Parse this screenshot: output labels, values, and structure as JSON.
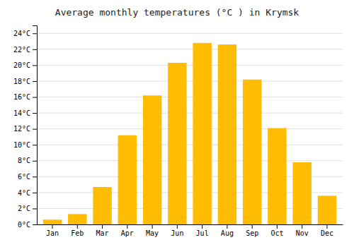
{
  "chart_data": {
    "type": "bar",
    "title": "Average monthly temperatures (°C ) in Krymsk",
    "categories": [
      "Jan",
      "Feb",
      "Mar",
      "Apr",
      "May",
      "Jun",
      "Jul",
      "Aug",
      "Sep",
      "Oct",
      "Nov",
      "Dec"
    ],
    "values": [
      0.6,
      1.3,
      4.7,
      11.2,
      16.2,
      20.3,
      22.8,
      22.6,
      18.2,
      12.1,
      7.8,
      3.6
    ],
    "color": "#FFBC00",
    "ylim": [
      0,
      25
    ],
    "yticks": [
      {
        "value": 0,
        "label": "0°C"
      },
      {
        "value": 2,
        "label": "2°C"
      },
      {
        "value": 4,
        "label": "4°C"
      },
      {
        "value": 6,
        "label": "6°C"
      },
      {
        "value": 8,
        "label": "8°C"
      },
      {
        "value": 10,
        "label": "10°C"
      },
      {
        "value": 12,
        "label": "12°C"
      },
      {
        "value": 14,
        "label": "14°C"
      },
      {
        "value": 16,
        "label": "16°C"
      },
      {
        "value": 18,
        "label": "18°C"
      },
      {
        "value": 20,
        "label": "20°C"
      },
      {
        "value": 22,
        "label": "22°C"
      },
      {
        "value": 24,
        "label": "24°C"
      }
    ],
    "grid": true
  }
}
